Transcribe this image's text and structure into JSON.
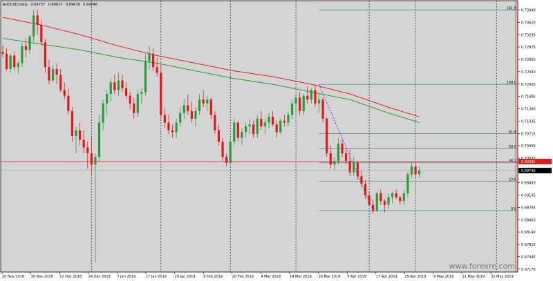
{
  "header": {
    "symbol": "AUDUSD,Daily",
    "open": "0.69737",
    "high": "0.69817",
    "low": "0.69678",
    "close": "0.69746"
  },
  "watermark": "www.forexre.com",
  "chart_data": {
    "type": "candlestick",
    "grid": false,
    "ylim": [
      0.67095,
      0.74185
    ],
    "y_ticks": [
      "0.73940",
      "0.73620",
      "0.73295",
      "0.72975",
      "0.72650",
      "0.72330",
      "0.72005",
      "0.71685",
      "0.71360",
      "0.71035",
      "0.70715",
      "0.70395",
      "0.70070",
      "0.69430",
      "0.69105",
      "0.68785",
      "0.68460",
      "0.68140",
      "0.67815",
      "0.67495",
      "0.67170"
    ],
    "x_labels": [
      "20 Nov 2018",
      "30 Nov 2018",
      "12 Dec 2018",
      "24 Dec 2018",
      "7 Jan 2019",
      "17 Jan 2019",
      "29 Jan 2019",
      "8 Feb 2019",
      "20 Feb 2019",
      "4 Mar 2019",
      "14 Mar 2019",
      "26 Mar 2019",
      "5 Apr 2019",
      "17 Apr 2019",
      "29 Apr 2019",
      "9 May 2019",
      "21 May 2019",
      "31 May 2019"
    ],
    "candles": [
      [
        0.7285,
        0.7302,
        0.727,
        0.728
      ],
      [
        0.728,
        0.7295,
        0.7235,
        0.724
      ],
      [
        0.724,
        0.728,
        0.723,
        0.7275
      ],
      [
        0.7275,
        0.7285,
        0.7238,
        0.7245
      ],
      [
        0.7245,
        0.7262,
        0.7228,
        0.7255
      ],
      [
        0.7255,
        0.731,
        0.7245,
        0.73
      ],
      [
        0.73,
        0.732,
        0.727,
        0.729
      ],
      [
        0.729,
        0.733,
        0.728,
        0.7325
      ],
      [
        0.7325,
        0.7395,
        0.731,
        0.738
      ],
      [
        0.738,
        0.7395,
        0.733,
        0.7355
      ],
      [
        0.7355,
        0.737,
        0.73,
        0.731
      ],
      [
        0.731,
        0.732,
        0.723,
        0.7245
      ],
      [
        0.7245,
        0.7265,
        0.72,
        0.721
      ],
      [
        0.721,
        0.725,
        0.7205,
        0.724
      ],
      [
        0.724,
        0.7255,
        0.72,
        0.7225
      ],
      [
        0.7225,
        0.724,
        0.718,
        0.7185
      ],
      [
        0.7185,
        0.7205,
        0.716,
        0.717
      ],
      [
        0.717,
        0.719,
        0.712,
        0.713
      ],
      [
        0.713,
        0.714,
        0.705,
        0.7065
      ],
      [
        0.7065,
        0.709,
        0.702,
        0.708
      ],
      [
        0.708,
        0.71,
        0.704,
        0.7055
      ],
      [
        0.7055,
        0.708,
        0.702,
        0.7035
      ],
      [
        0.7035,
        0.705,
        0.698,
        0.702
      ],
      [
        0.702,
        0.706,
        0.6965,
        0.699
      ],
      [
        0.699,
        0.702,
        0.6735,
        0.701
      ],
      [
        0.701,
        0.712,
        0.7,
        0.71
      ],
      [
        0.71,
        0.716,
        0.708,
        0.715
      ],
      [
        0.715,
        0.7185,
        0.712,
        0.7175
      ],
      [
        0.7175,
        0.7215,
        0.7155,
        0.7205
      ],
      [
        0.7205,
        0.7225,
        0.7175,
        0.7185
      ],
      [
        0.7185,
        0.723,
        0.717,
        0.721
      ],
      [
        0.721,
        0.7225,
        0.718,
        0.719
      ],
      [
        0.719,
        0.7205,
        0.716,
        0.717
      ],
      [
        0.717,
        0.718,
        0.7135,
        0.715
      ],
      [
        0.715,
        0.7165,
        0.711,
        0.7125
      ],
      [
        0.7125,
        0.7185,
        0.7115,
        0.7175
      ],
      [
        0.7175,
        0.719,
        0.715,
        0.718
      ],
      [
        0.718,
        0.728,
        0.717,
        0.726
      ],
      [
        0.726,
        0.73,
        0.724,
        0.728
      ],
      [
        0.728,
        0.7295,
        0.7235,
        0.7245
      ],
      [
        0.7245,
        0.727,
        0.722,
        0.723
      ],
      [
        0.723,
        0.725,
        0.711,
        0.712
      ],
      [
        0.712,
        0.714,
        0.7085,
        0.71
      ],
      [
        0.71,
        0.712,
        0.707,
        0.708
      ],
      [
        0.708,
        0.7095,
        0.706,
        0.7075
      ],
      [
        0.7075,
        0.711,
        0.706,
        0.71
      ],
      [
        0.71,
        0.714,
        0.709,
        0.7125
      ],
      [
        0.7125,
        0.716,
        0.711,
        0.7145
      ],
      [
        0.7145,
        0.7175,
        0.712,
        0.713
      ],
      [
        0.713,
        0.7155,
        0.71,
        0.711
      ],
      [
        0.711,
        0.714,
        0.709,
        0.713
      ],
      [
        0.713,
        0.7175,
        0.712,
        0.716
      ],
      [
        0.716,
        0.7185,
        0.714,
        0.715
      ],
      [
        0.715,
        0.717,
        0.713,
        0.716
      ],
      [
        0.716,
        0.7165,
        0.711,
        0.712
      ],
      [
        0.712,
        0.713,
        0.707,
        0.708
      ],
      [
        0.708,
        0.7095,
        0.704,
        0.705
      ],
      [
        0.705,
        0.706,
        0.7,
        0.701
      ],
      [
        0.701,
        0.702,
        0.6985,
        0.6995
      ],
      [
        0.6995,
        0.706,
        0.699,
        0.705
      ],
      [
        0.705,
        0.711,
        0.704,
        0.71
      ],
      [
        0.71,
        0.7105,
        0.705,
        0.706
      ],
      [
        0.706,
        0.7085,
        0.704,
        0.7075
      ],
      [
        0.7075,
        0.71,
        0.706,
        0.709
      ],
      [
        0.709,
        0.711,
        0.707,
        0.7095
      ],
      [
        0.7095,
        0.7105,
        0.706,
        0.707
      ],
      [
        0.707,
        0.712,
        0.706,
        0.711
      ],
      [
        0.711,
        0.713,
        0.708,
        0.709
      ],
      [
        0.709,
        0.711,
        0.707,
        0.71
      ],
      [
        0.71,
        0.7125,
        0.7085,
        0.7115
      ],
      [
        0.7115,
        0.713,
        0.709,
        0.7095
      ],
      [
        0.7095,
        0.7105,
        0.706,
        0.7075
      ],
      [
        0.7075,
        0.711,
        0.707,
        0.7105
      ],
      [
        0.7105,
        0.712,
        0.709,
        0.71
      ],
      [
        0.71,
        0.713,
        0.709,
        0.712
      ],
      [
        0.712,
        0.716,
        0.711,
        0.715
      ],
      [
        0.715,
        0.7175,
        0.714,
        0.7165
      ],
      [
        0.7165,
        0.718,
        0.712,
        0.713
      ],
      [
        0.713,
        0.7175,
        0.712,
        0.717
      ],
      [
        0.717,
        0.7195,
        0.715,
        0.716
      ],
      [
        0.716,
        0.719,
        0.715,
        0.7185
      ],
      [
        0.7185,
        0.72,
        0.714,
        0.715
      ],
      [
        0.715,
        0.7175,
        0.7125,
        0.716
      ],
      [
        0.716,
        0.7165,
        0.71,
        0.711
      ],
      [
        0.711,
        0.7115,
        0.701,
        0.702
      ],
      [
        0.702,
        0.704,
        0.698,
        0.699
      ],
      [
        0.699,
        0.701,
        0.6975,
        0.7
      ],
      [
        0.7,
        0.706,
        0.699,
        0.7045
      ],
      [
        0.7045,
        0.7055,
        0.701,
        0.702
      ],
      [
        0.702,
        0.7035,
        0.699,
        0.7
      ],
      [
        0.7,
        0.703,
        0.696,
        0.697
      ],
      [
        0.697,
        0.701,
        0.696,
        0.6995
      ],
      [
        0.6995,
        0.7,
        0.695,
        0.696
      ],
      [
        0.696,
        0.6975,
        0.693,
        0.694
      ],
      [
        0.694,
        0.695,
        0.69,
        0.691
      ],
      [
        0.691,
        0.692,
        0.688,
        0.6885
      ],
      [
        0.6885,
        0.69,
        0.6862,
        0.687
      ],
      [
        0.687,
        0.692,
        0.6865,
        0.6915
      ],
      [
        0.6915,
        0.6925,
        0.6885,
        0.6895
      ],
      [
        0.6895,
        0.69,
        0.6865,
        0.6885
      ],
      [
        0.6885,
        0.6915,
        0.6875,
        0.6905
      ],
      [
        0.6905,
        0.692,
        0.689,
        0.6915
      ],
      [
        0.6915,
        0.6925,
        0.69,
        0.6905
      ],
      [
        0.6905,
        0.691,
        0.6885,
        0.6895
      ],
      [
        0.6895,
        0.6925,
        0.6885,
        0.6915
      ],
      [
        0.6915,
        0.697,
        0.6905,
        0.6965
      ],
      [
        0.6965,
        0.6995,
        0.6955,
        0.6985
      ],
      [
        0.6985,
        0.6995,
        0.6955,
        0.6965
      ],
      [
        0.6965,
        0.6985,
        0.6955,
        0.6975
      ]
    ],
    "ma_green": [
      [
        0,
        0.732
      ],
      [
        10,
        0.7305
      ],
      [
        20,
        0.729
      ],
      [
        30,
        0.727
      ],
      [
        40,
        0.7255
      ],
      [
        50,
        0.7235
      ],
      [
        60,
        0.7215
      ],
      [
        70,
        0.72
      ],
      [
        80,
        0.718
      ],
      [
        90,
        0.716
      ],
      [
        100,
        0.7125
      ],
      [
        108,
        0.71
      ]
    ],
    "ma_red": [
      [
        0,
        0.7375
      ],
      [
        10,
        0.7355
      ],
      [
        20,
        0.733
      ],
      [
        30,
        0.73
      ],
      [
        40,
        0.7275
      ],
      [
        50,
        0.7255
      ],
      [
        60,
        0.7235
      ],
      [
        70,
        0.722
      ],
      [
        80,
        0.72
      ],
      [
        90,
        0.7175
      ],
      [
        100,
        0.714
      ],
      [
        108,
        0.7115
      ]
    ],
    "fib_levels": [
      {
        "label": "161.8",
        "price": 0.7394
      },
      {
        "label": "100.0",
        "price": 0.72
      },
      {
        "label": "61.8",
        "price": 0.7071
      },
      {
        "label": "50.0",
        "price": 0.7032
      },
      {
        "label": "38.2",
        "price": 0.6995
      },
      {
        "label": "23.6",
        "price": 0.6947
      },
      {
        "label": "0.0",
        "price": 0.687
      }
    ],
    "fib_trend": {
      "from": [
        82,
        0.72
      ],
      "to": [
        96,
        0.687
      ]
    },
    "price_lines": {
      "horizontal_red": 0.69982,
      "current_bid": 0.69746
    },
    "price_labels": {
      "red": "0.69982",
      "bid": "0.69746"
    },
    "separators": [
      23,
      41,
      59,
      76,
      95,
      107,
      128
    ],
    "vertical_red": 133
  }
}
